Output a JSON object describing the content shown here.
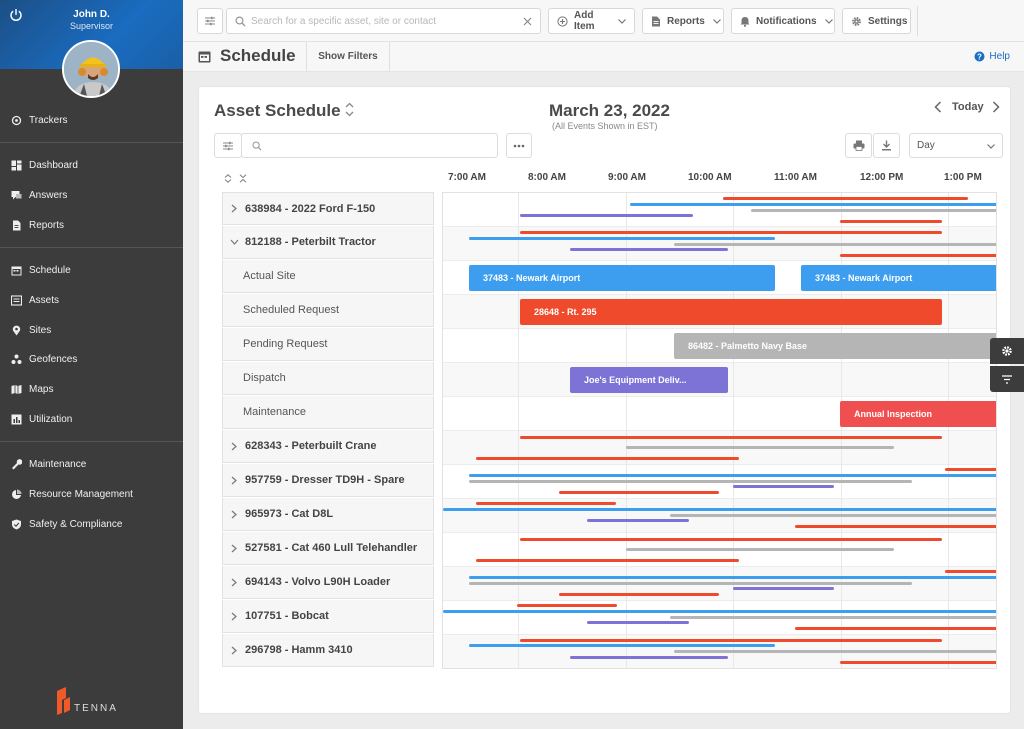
{
  "sidebar": {
    "user_name": "John D.",
    "user_role": "Supervisor",
    "items": [
      {
        "label": "Trackers",
        "icon": "crosshair-icon"
      },
      {
        "label": "Dashboard",
        "icon": "dashboard-icon"
      },
      {
        "label": "Answers",
        "icon": "chat-icon"
      },
      {
        "label": "Reports",
        "icon": "report-icon"
      },
      {
        "label": "Schedule",
        "icon": "calendar-icon"
      },
      {
        "label": "Assets",
        "icon": "list-icon"
      },
      {
        "label": "Sites",
        "icon": "pin-icon"
      },
      {
        "label": "Geofences",
        "icon": "geofence-icon"
      },
      {
        "label": "Maps",
        "icon": "map-icon"
      },
      {
        "label": "Utilization",
        "icon": "chart-icon"
      },
      {
        "label": "Maintenance",
        "icon": "wrench-icon"
      },
      {
        "label": "Resource Management",
        "icon": "pie-icon"
      },
      {
        "label": "Safety & Compliance",
        "icon": "shield-icon"
      }
    ],
    "brand": "TENNA"
  },
  "topbar": {
    "search_placeholder": "Search for a specific asset, site or contact",
    "add_item": "Add Item",
    "reports": "Reports",
    "notifications": "Notifications",
    "settings": "Settings"
  },
  "page": {
    "title": "Schedule",
    "show_filters": "Show Filters",
    "help": "Help"
  },
  "schedule": {
    "title": "Asset Schedule",
    "date": "March 23, 2022",
    "date_note": "(All Events Shown in EST)",
    "today": "Today",
    "view": "Day",
    "hours": [
      "7:00 AM",
      "8:00 AM",
      "9:00 AM",
      "10:00 AM",
      "11:00 AM",
      "12:00 PM",
      "1:00 PM"
    ],
    "rows": [
      {
        "label": "638984 - 2022 Ford F-150",
        "type": "asset",
        "expanded": false
      },
      {
        "label": "812188 - Peterbilt Tractor",
        "type": "asset",
        "expanded": true
      },
      {
        "label": "Actual Site",
        "type": "sub"
      },
      {
        "label": "Scheduled Request",
        "type": "sub"
      },
      {
        "label": "Pending Request",
        "type": "sub"
      },
      {
        "label": "Dispatch",
        "type": "sub"
      },
      {
        "label": "Maintenance",
        "type": "sub"
      },
      {
        "label": "628343 - Peterbuilt Crane",
        "type": "asset",
        "expanded": false
      },
      {
        "label": "957759 - Dresser TD9H - Spare",
        "type": "asset",
        "expanded": false
      },
      {
        "label": "965973 - Cat D8L",
        "type": "asset",
        "expanded": false
      },
      {
        "label": "527581 - Cat 460 Lull Telehandler",
        "type": "asset",
        "expanded": false
      },
      {
        "label": "694143 - Volvo L90H Loader",
        "type": "asset",
        "expanded": false
      },
      {
        "label": "107751 - Bobcat",
        "type": "asset",
        "expanded": false
      },
      {
        "label": "296798 - Hamm 3410",
        "type": "asset",
        "expanded": false
      }
    ],
    "events": {
      "actual_site_1": "37483 - Newark Airport",
      "actual_site_2": "37483 - Newark Airport",
      "scheduled": "28648 - Rt. 295",
      "pending": "86482 - Palmetto Navy Base",
      "dispatch": "Joe's Equipment Deliv...",
      "maintenance": "Annual Inspection"
    },
    "colors": {
      "blue": "#3d9ef0",
      "red": "#ef4a2c",
      "gray": "#b5b5b5",
      "purple": "#7d73d6",
      "maint": "#f04f4f"
    }
  }
}
